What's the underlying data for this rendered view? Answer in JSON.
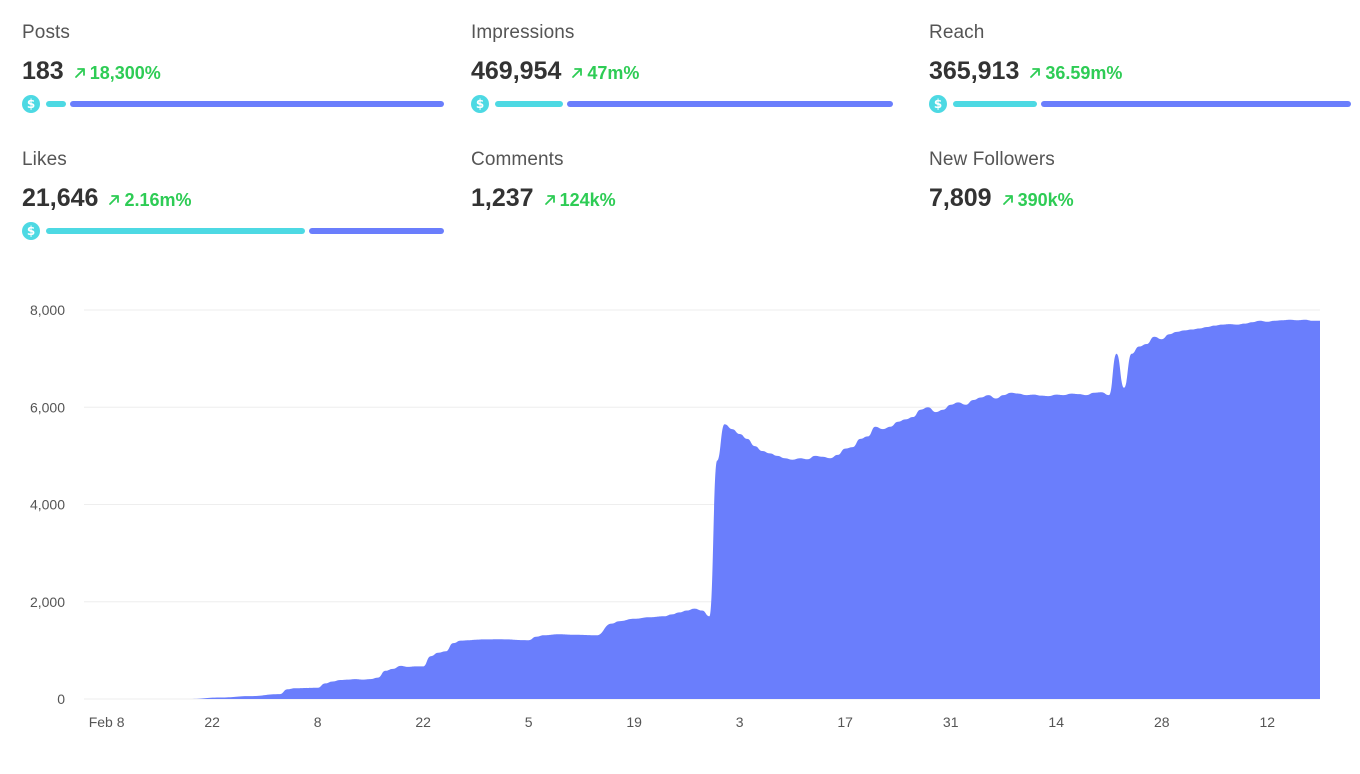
{
  "colors": {
    "accent_cyan": "#4dd9e3",
    "accent_blue": "#6a7efc",
    "positive": "#2ecc55",
    "grid": "#eeeeee"
  },
  "metrics": [
    {
      "label": "Posts",
      "value": "183",
      "change": "18,300%",
      "bar": {
        "icon": "dollar-icon",
        "cyan_fraction": 0.05
      }
    },
    {
      "label": "Impressions",
      "value": "469,954",
      "change": "47m%",
      "bar": {
        "icon": "dollar-icon",
        "cyan_fraction": 0.17
      }
    },
    {
      "label": "Reach",
      "value": "365,913",
      "change": "36.59m%",
      "bar": {
        "icon": "dollar-icon",
        "cyan_fraction": 0.21
      }
    },
    {
      "label": "Likes",
      "value": "21,646",
      "change": "2.16m%",
      "bar": {
        "icon": "dollar-icon",
        "cyan_fraction": 0.65
      }
    },
    {
      "label": "Comments",
      "value": "1,237",
      "change": "124k%"
    },
    {
      "label": "New Followers",
      "value": "7,809",
      "change": "390k%"
    }
  ],
  "chart_data": {
    "type": "area",
    "title": "",
    "xlabel": "",
    "ylabel": "",
    "ylim": [
      0,
      8000
    ],
    "grid": true,
    "y_ticks": [
      0,
      2000,
      4000,
      6000,
      8000
    ],
    "y_tick_labels": [
      "0",
      "2,000",
      "4,000",
      "6,000",
      "8,000"
    ],
    "x_ticks": [
      {
        "day": 0,
        "label": "Feb 8"
      },
      {
        "day": 14,
        "label": "22"
      },
      {
        "day": 28,
        "label": "8"
      },
      {
        "day": 42,
        "label": "22"
      },
      {
        "day": 56,
        "label": "5"
      },
      {
        "day": 70,
        "label": "19"
      },
      {
        "day": 84,
        "label": "3"
      },
      {
        "day": 98,
        "label": "17"
      },
      {
        "day": 112,
        "label": "31"
      },
      {
        "day": 126,
        "label": "14"
      },
      {
        "day": 140,
        "label": "28"
      },
      {
        "day": 154,
        "label": "12"
      }
    ],
    "xlim": [
      -3,
      161
    ],
    "series": [
      {
        "color": "#6a7efc",
        "x": [
          -3,
          11,
          15,
          19,
          23,
          24,
          25,
          26,
          28,
          29,
          30,
          31,
          32,
          33,
          34,
          35,
          36,
          37,
          38,
          39,
          40,
          41,
          42,
          43,
          44,
          45,
          46,
          47,
          48,
          49,
          50,
          52,
          56,
          57,
          58,
          60,
          62,
          65,
          67,
          68,
          70,
          72,
          74,
          75,
          76,
          77,
          78,
          79,
          80,
          81,
          82,
          83,
          84,
          85,
          86,
          87,
          88,
          89,
          90,
          91,
          92,
          93,
          94,
          95,
          96,
          97,
          98,
          99,
          100,
          101,
          102,
          103,
          104,
          105,
          106,
          107,
          108,
          109,
          110,
          111,
          112,
          113,
          114,
          115,
          116,
          117,
          118,
          119,
          120,
          121,
          122,
          123,
          124,
          125,
          126,
          127,
          128,
          129,
          130,
          131,
          132,
          133,
          134,
          135,
          136,
          137,
          138,
          139,
          140,
          141,
          142,
          143,
          144,
          145,
          146,
          147,
          148,
          149,
          150,
          151,
          152,
          153,
          154,
          155,
          156,
          157,
          158,
          159,
          160,
          161
        ],
        "y": [
          0,
          0,
          30,
          60,
          100,
          200,
          220,
          225,
          230,
          320,
          360,
          390,
          400,
          410,
          400,
          410,
          440,
          580,
          620,
          680,
          660,
          670,
          670,
          880,
          950,
          980,
          1150,
          1200,
          1210,
          1220,
          1225,
          1230,
          1210,
          1280,
          1310,
          1330,
          1320,
          1310,
          1550,
          1600,
          1650,
          1680,
          1700,
          1740,
          1780,
          1820,
          1860,
          1820,
          1700,
          4900,
          5650,
          5550,
          5450,
          5350,
          5200,
          5100,
          5050,
          5000,
          4950,
          4920,
          4950,
          4930,
          5000,
          4980,
          4950,
          5020,
          5150,
          5180,
          5350,
          5400,
          5600,
          5550,
          5600,
          5700,
          5750,
          5800,
          5950,
          6000,
          5900,
          5950,
          6050,
          6100,
          6050,
          6150,
          6200,
          6250,
          6180,
          6250,
          6300,
          6280,
          6250,
          6260,
          6240,
          6230,
          6260,
          6250,
          6280,
          6270,
          6250,
          6300,
          6310,
          6250,
          7100,
          6400,
          7100,
          7250,
          7300,
          7450,
          7400,
          7500,
          7550,
          7580,
          7600,
          7620,
          7650,
          7680,
          7700,
          7710,
          7700,
          7720,
          7750,
          7780,
          7760,
          7780,
          7790,
          7800,
          7790,
          7800,
          7780,
          7780
        ]
      }
    ]
  }
}
